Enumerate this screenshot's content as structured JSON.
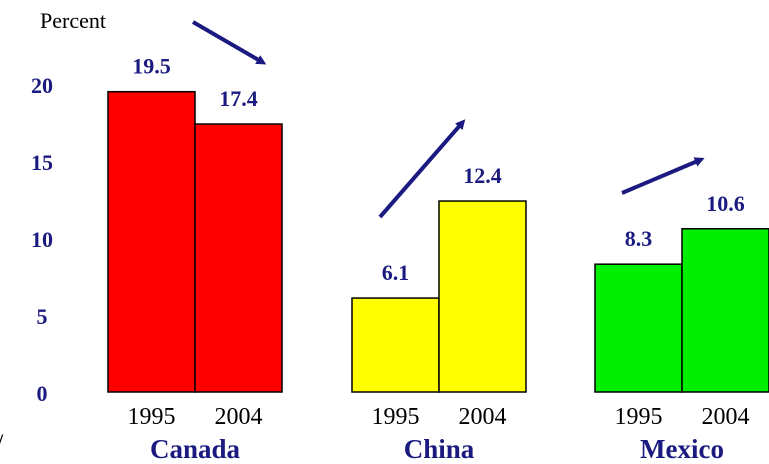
{
  "chart_data": {
    "type": "bar",
    "ylabel": "Percent",
    "ylim": [
      0,
      21
    ],
    "yticks": [
      "0",
      "5",
      "10",
      "15",
      "20"
    ],
    "year_labels": [
      "1995",
      "2004"
    ],
    "groups": [
      {
        "name": "Canada",
        "color": "#ff0000",
        "values": [
          19.5,
          17.4
        ],
        "value_labels": [
          "19.5",
          "17.4"
        ],
        "trend": "down"
      },
      {
        "name": "China",
        "color": "#ffff00",
        "values": [
          6.1,
          12.4
        ],
        "value_labels": [
          "6.1",
          "12.4"
        ],
        "trend": "up"
      },
      {
        "name": "Mexico",
        "color": "#00ee00",
        "values": [
          8.3,
          10.6
        ],
        "value_labels": [
          "8.3",
          "10.6"
        ],
        "trend": "up"
      }
    ],
    "colors": {
      "text": "#1a1a80",
      "arrow": "#1a1a80",
      "outline": "#000000"
    }
  },
  "corner_glyph": "/"
}
